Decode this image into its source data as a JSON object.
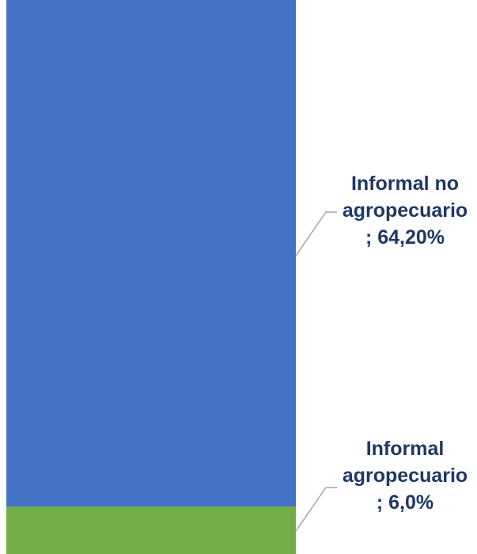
{
  "chart_data": {
    "type": "bar",
    "stacked": true,
    "title": "",
    "xlabel": "",
    "ylabel": "",
    "series": [
      {
        "name": "Informal agropecuario",
        "value": 6.0,
        "label_lines": [
          "Informal",
          "agropecuario",
          "; 6,0%"
        ],
        "color": "#70ad47"
      },
      {
        "name": "Informal no agropecuario",
        "value": 64.2,
        "label_lines": [
          "Informal no",
          "agropecuario",
          "; 64,20%"
        ],
        "color": "#4472c4"
      }
    ],
    "label_color": "#1f3864",
    "leader_color": "#a6a6a6"
  }
}
